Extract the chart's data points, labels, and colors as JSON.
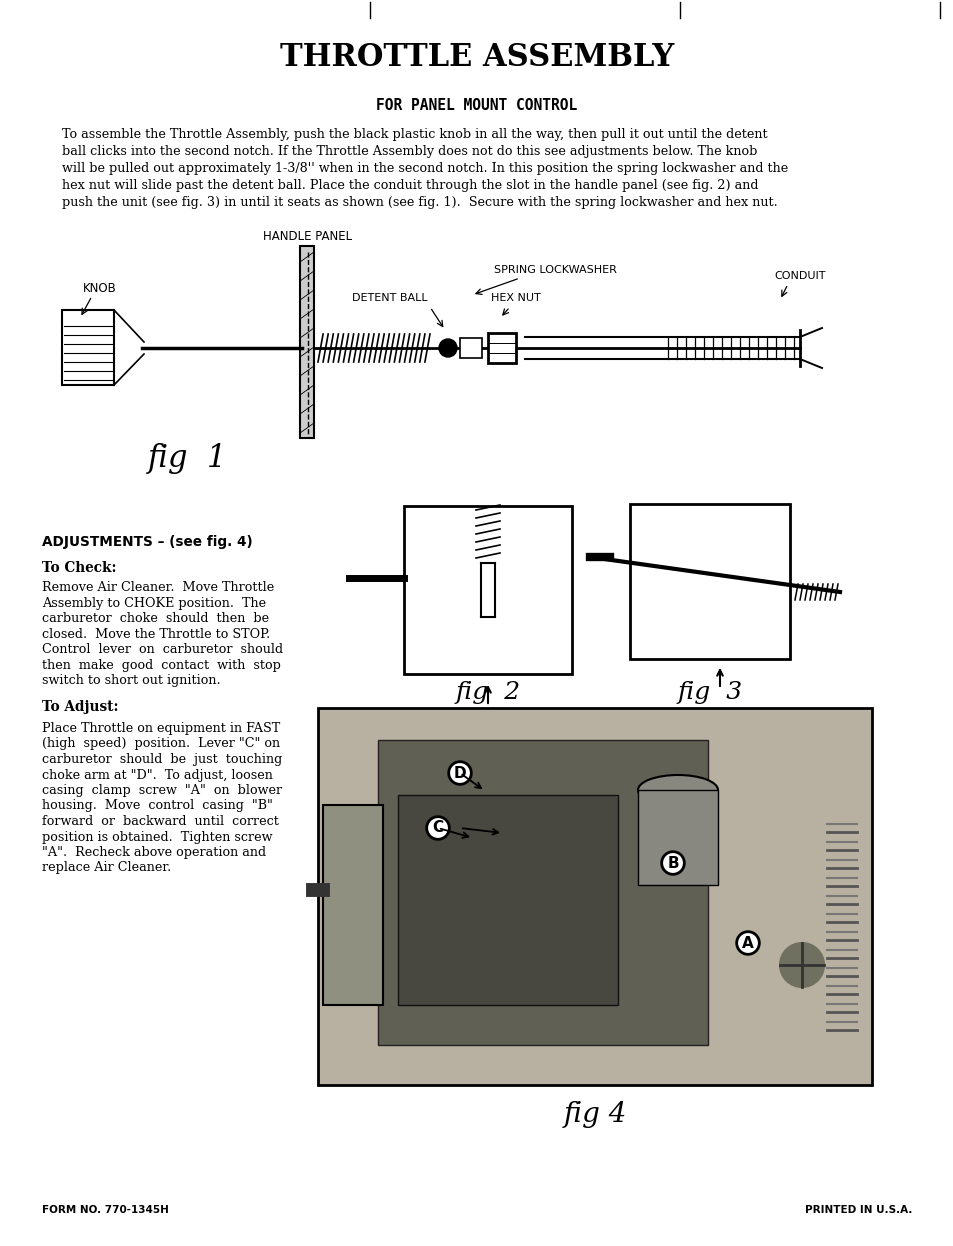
{
  "bg_color": "#ffffff",
  "title": "THROTTLE ASSEMBLY",
  "subtitle": "FOR PANEL MOUNT CONTROL",
  "body_line1": "To assemble the Throttle Assembly, push the black plastic knob in all the way, then pull it out until the detent",
  "body_line2": "ball clicks into the second notch. If the Throttle Assembly does not do this see adjustments below. The knob",
  "body_line3": "will be pulled out approximately 1-3/8'' when in the second notch. In this position the spring lockwasher and the",
  "body_line4": "hex nut will slide past the detent ball. Place the conduit through the slot in the handle panel (see fig. 2) and",
  "body_line5": "push the unit (see fig. 3) in until it seats as shown (see fig. 1).  Secure with the spring lockwasher and hex nut.",
  "handle_panel_label": "HANDLE PANEL",
  "knob_label": "KNOB",
  "detent_ball_label": "DETENT BALL",
  "spring_label": "SPRING LOCKWASHER",
  "hex_nut_label": "HEX NUT",
  "conduit_label": "CONDUIT",
  "fig1_label": "fig  1",
  "fig2_label": "fig  2",
  "fig3_label": "fig  3",
  "fig4_label": "fig 4",
  "adjustments_header": "ADJUSTMENTS – (see fig. 4)",
  "to_check_header": "To Check:",
  "to_check_lines": [
    "Remove Air Cleaner.  Move Throttle",
    "Assembly to CHOKE position.  The",
    "carburetor  choke  should  then  be",
    "closed.  Move the Throttle to STOP.",
    "Control  lever  on  carburetor  should",
    "then  make  good  contact  with  stop",
    "switch to short out ignition."
  ],
  "to_adjust_header": "To Adjust:",
  "to_adjust_lines": [
    "Place Throttle on equipment in FAST",
    "(high  speed)  position.  Lever \"C\" on",
    "carburetor  should  be  just  touching",
    "choke arm at \"D\".  To adjust, loosen",
    "casing  clamp  screw  \"A\"  on  blower",
    "housing.  Move  control  casing  \"B\"",
    "forward  or  backward  until  correct",
    "position is obtained.  Tighten screw",
    "\"A\".  Recheck above operation and",
    "replace Air Cleaner."
  ],
  "form_no": "FORM NO. 770-1345H",
  "printed": "PRINTED IN U.S.A.",
  "text_color": "#000000",
  "line_color": "#000000"
}
